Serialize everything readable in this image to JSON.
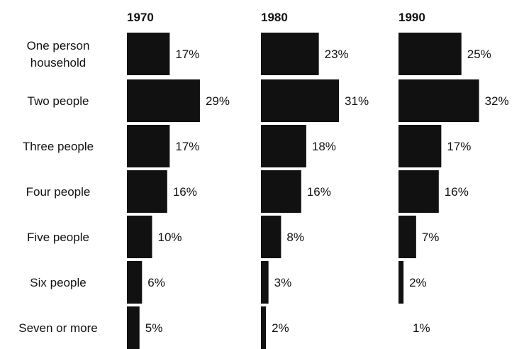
{
  "chart_data": {
    "type": "bar",
    "title": "",
    "xlabel": "",
    "ylabel": "",
    "categories": [
      "One person household",
      "Two people",
      "Three people",
      "Four people",
      "Five people",
      "Six people",
      "Seven or more"
    ],
    "category_lines": [
      [
        "One person",
        "household"
      ],
      [
        "Two people"
      ],
      [
        "Three people"
      ],
      [
        "Four people"
      ],
      [
        "Five people"
      ],
      [
        "Six people"
      ],
      [
        "Seven or more"
      ]
    ],
    "series": [
      {
        "name": "1970",
        "values": [
          17,
          29,
          17,
          16,
          10,
          6,
          5
        ],
        "labels": [
          "17%",
          "29%",
          "17%",
          "16%",
          "10%",
          "6%",
          "5%"
        ]
      },
      {
        "name": "1980",
        "values": [
          23,
          31,
          18,
          16,
          8,
          3,
          2
        ],
        "labels": [
          "23%",
          "31%",
          "18%",
          "16%",
          "8%",
          "3%",
          "2%"
        ]
      },
      {
        "name": "1990",
        "values": [
          25,
          32,
          17,
          16,
          7,
          2,
          1
        ],
        "labels": [
          "25%",
          "32%",
          "17%",
          "16%",
          "7%",
          "2%",
          "1%"
        ]
      }
    ],
    "orientation": "horizontal",
    "layout": "small-multiples",
    "bar_color": "#111111",
    "grid": false,
    "legend": "none"
  }
}
